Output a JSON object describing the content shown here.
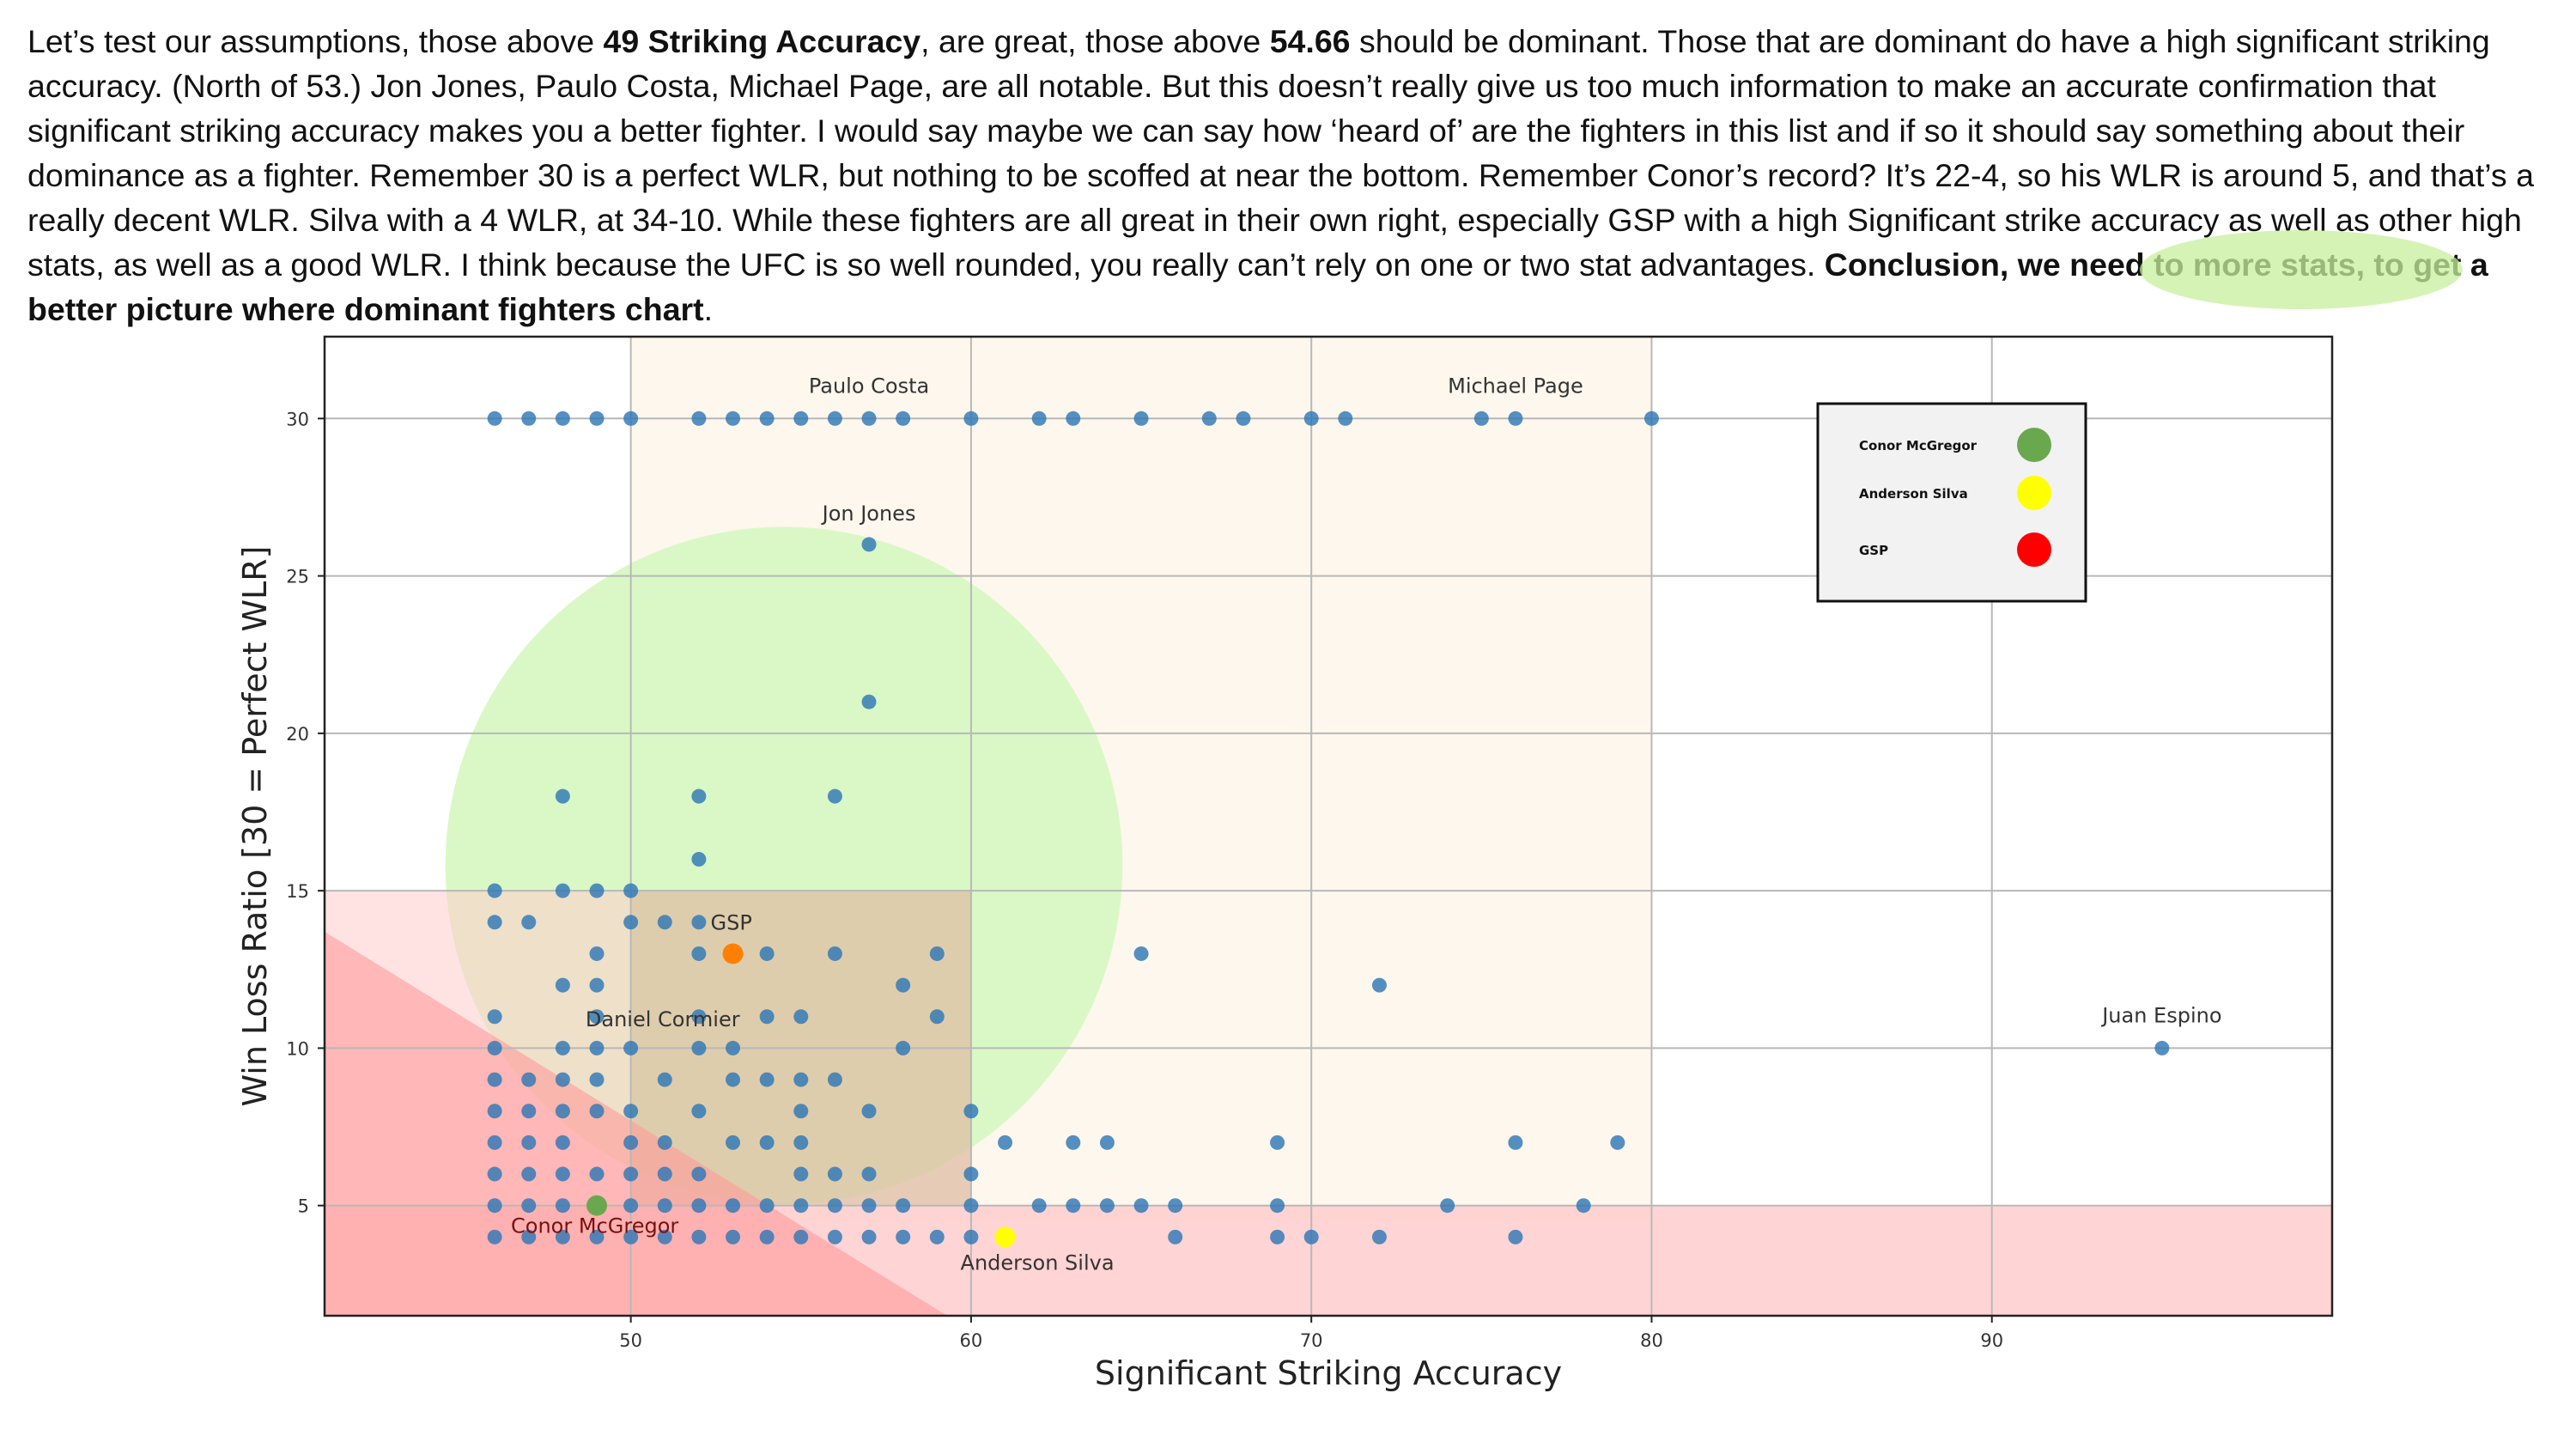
{
  "paragraph": {
    "p1": " Let’s test our assumptions, those above ",
    "b1": "49 Striking Accuracy",
    "p2": ", are great, those above ",
    "b2": "54.66",
    "p3": " should be dominant. Those that are dominant do have a high significant striking accuracy. (North of 53.) Jon Jones, Paulo Costa, Michael Page, are all notable. But this doesn’t really give us too much information to make an accurate confirmation that significant striking accuracy makes you a better fighter. I would say maybe we can say how ‘heard of’ are the fighters in this list and if so it should say something about their dominance as a fighter. Remember 30 is a perfect WLR, but nothing to be scoffed at near the bottom. Remember Conor’s record? It’s 22-4, so his WLR is around 5, and that’s a really decent WLR. Silva with a 4 WLR, at 34-10. While these fighters are all great in their own right, especially GSP with a high Significant strike accuracy as well as other high stats, as well as a good WLR. I think because the UFC is so well rounded, you really can’t rely on one or two stat advantages. ",
    "b3": "Conclusion, we need to more stats, to get a better picture where dominant fighters chart",
    "p4": "."
  },
  "colors": {
    "point": "#2f78b6",
    "highlight": "#c8ef9e",
    "conor": "#6aa84f",
    "silva": "#ffff00",
    "gsp_legend": "#ff0000",
    "gsp_point": "#ff8000",
    "green_circle": "#d5f7c0",
    "cream_region": "#fdf6eb",
    "pink_region": "#ffcccc",
    "red_triangle": "#ff9999"
  },
  "chart_data": {
    "type": "scatter",
    "xlabel": "Significant Striking Accuracy",
    "ylabel": "Win Loss Ratio [30 = Perfect WLR]",
    "xlim": [
      41,
      100
    ],
    "ylim": [
      1.5,
      32.6
    ],
    "xticks": [
      50,
      60,
      70,
      80,
      90
    ],
    "yticks": [
      5,
      10,
      15,
      20,
      25,
      30
    ],
    "grid": true,
    "legend_position": "top-right",
    "legend": [
      {
        "label": "Conor McGregor",
        "color": "#6aa84f"
      },
      {
        "label": "Anderson Silva",
        "color": "#ffff00"
      },
      {
        "label": "GSP",
        "color": "#ff0000"
      }
    ],
    "annotations": [
      {
        "text": "Paulo Costa",
        "x": 57,
        "y": 30
      },
      {
        "text": "Michael Page",
        "x": 76,
        "y": 30
      },
      {
        "text": "Jon Jones",
        "x": 57,
        "y": 26
      },
      {
        "text": "GSP",
        "x": 53,
        "y": 13
      },
      {
        "text": "Daniel Cormier",
        "x": 52,
        "y": 12
      },
      {
        "text": "Juan Espino",
        "x": 95,
        "y": 10
      },
      {
        "text": "Conor McGregor",
        "x": 49,
        "y": 5
      },
      {
        "text": "Anderson Silva",
        "x": 61,
        "y": 4
      }
    ],
    "highlights": [
      {
        "name": "Conor McGregor",
        "x": 49,
        "y": 5
      },
      {
        "name": "Anderson Silva",
        "x": 61,
        "y": 4
      },
      {
        "name": "GSP",
        "x": 53,
        "y": 13
      }
    ],
    "series": [
      {
        "points": [
          [
            46,
            30
          ],
          [
            47,
            30
          ],
          [
            48,
            30
          ],
          [
            49,
            30
          ],
          [
            50,
            30
          ],
          [
            52,
            30
          ],
          [
            53,
            30
          ],
          [
            54,
            30
          ],
          [
            55,
            30
          ],
          [
            56,
            30
          ],
          [
            57,
            30
          ],
          [
            58,
            30
          ],
          [
            60,
            30
          ],
          [
            62,
            30
          ],
          [
            63,
            30
          ],
          [
            65,
            30
          ],
          [
            67,
            30
          ],
          [
            68,
            30
          ],
          [
            70,
            30
          ],
          [
            71,
            30
          ],
          [
            75,
            30
          ],
          [
            76,
            30
          ],
          [
            80,
            30
          ],
          [
            57,
            26
          ],
          [
            57,
            21
          ],
          [
            48,
            18
          ],
          [
            52,
            18
          ],
          [
            56,
            18
          ],
          [
            52,
            16
          ],
          [
            46,
            15
          ],
          [
            48,
            15
          ],
          [
            49,
            15
          ],
          [
            50,
            15
          ],
          [
            46,
            14
          ],
          [
            47,
            14
          ],
          [
            50,
            14
          ],
          [
            51,
            14
          ],
          [
            52,
            14
          ],
          [
            49,
            13
          ],
          [
            52,
            13
          ],
          [
            54,
            13
          ],
          [
            56,
            13
          ],
          [
            59,
            13
          ],
          [
            65,
            13
          ],
          [
            48,
            12
          ],
          [
            49,
            12
          ],
          [
            58,
            12
          ],
          [
            72,
            12
          ],
          [
            46,
            11
          ],
          [
            49,
            11
          ],
          [
            52,
            11
          ],
          [
            54,
            11
          ],
          [
            55,
            11
          ],
          [
            59,
            11
          ],
          [
            46,
            10
          ],
          [
            48,
            10
          ],
          [
            49,
            10
          ],
          [
            50,
            10
          ],
          [
            52,
            10
          ],
          [
            53,
            10
          ],
          [
            58,
            10
          ],
          [
            95,
            10
          ],
          [
            46,
            9
          ],
          [
            47,
            9
          ],
          [
            48,
            9
          ],
          [
            49,
            9
          ],
          [
            51,
            9
          ],
          [
            53,
            9
          ],
          [
            54,
            9
          ],
          [
            55,
            9
          ],
          [
            56,
            9
          ],
          [
            46,
            8
          ],
          [
            47,
            8
          ],
          [
            48,
            8
          ],
          [
            49,
            8
          ],
          [
            50,
            8
          ],
          [
            52,
            8
          ],
          [
            55,
            8
          ],
          [
            57,
            8
          ],
          [
            60,
            8
          ],
          [
            46,
            7
          ],
          [
            47,
            7
          ],
          [
            48,
            7
          ],
          [
            50,
            7
          ],
          [
            51,
            7
          ],
          [
            53,
            7
          ],
          [
            54,
            7
          ],
          [
            55,
            7
          ],
          [
            61,
            7
          ],
          [
            63,
            7
          ],
          [
            64,
            7
          ],
          [
            69,
            7
          ],
          [
            76,
            7
          ],
          [
            79,
            7
          ],
          [
            46,
            6
          ],
          [
            47,
            6
          ],
          [
            48,
            6
          ],
          [
            49,
            6
          ],
          [
            50,
            6
          ],
          [
            51,
            6
          ],
          [
            52,
            6
          ],
          [
            55,
            6
          ],
          [
            56,
            6
          ],
          [
            57,
            6
          ],
          [
            60,
            6
          ],
          [
            46,
            5
          ],
          [
            47,
            5
          ],
          [
            48,
            5
          ],
          [
            50,
            5
          ],
          [
            51,
            5
          ],
          [
            52,
            5
          ],
          [
            53,
            5
          ],
          [
            54,
            5
          ],
          [
            55,
            5
          ],
          [
            56,
            5
          ],
          [
            57,
            5
          ],
          [
            58,
            5
          ],
          [
            60,
            5
          ],
          [
            62,
            5
          ],
          [
            63,
            5
          ],
          [
            64,
            5
          ],
          [
            65,
            5
          ],
          [
            66,
            5
          ],
          [
            69,
            5
          ],
          [
            74,
            5
          ],
          [
            78,
            5
          ],
          [
            46,
            4
          ],
          [
            47,
            4
          ],
          [
            48,
            4
          ],
          [
            49,
            4
          ],
          [
            50,
            4
          ],
          [
            51,
            4
          ],
          [
            52,
            4
          ],
          [
            53,
            4
          ],
          [
            54,
            4
          ],
          [
            55,
            4
          ],
          [
            56,
            4
          ],
          [
            57,
            4
          ],
          [
            58,
            4
          ],
          [
            59,
            4
          ],
          [
            60,
            4
          ],
          [
            66,
            4
          ],
          [
            69,
            4
          ],
          [
            70,
            4
          ],
          [
            72,
            4
          ],
          [
            76,
            4
          ]
        ]
      }
    ]
  }
}
